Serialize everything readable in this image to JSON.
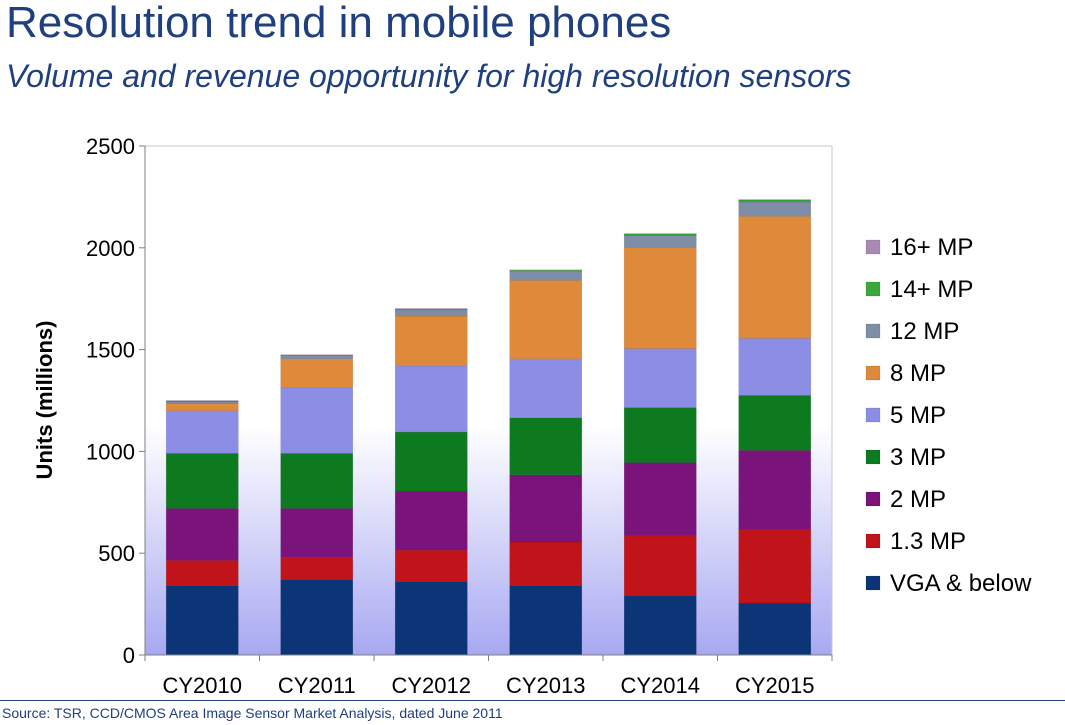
{
  "title": "Resolution trend in mobile phones",
  "subtitle": "Volume and revenue opportunity for high resolution sensors",
  "source": "Source: TSR, CCD/CMOS Area Image Sensor Market Analysis, dated June 2011",
  "colors": {
    "VGA & below": "#0c3577",
    "1.3 MP": "#c0141a",
    "2 MP": "#7a137a",
    "3 MP": "#0d7a20",
    "5 MP": "#8c8ee6",
    "8 MP": "#df8a3a",
    "12 MP": "#7f8ea6",
    "14+ MP": "#3aa83a",
    "16+ MP": "#a98ab4"
  },
  "chart_data": {
    "type": "bar",
    "stacked": true,
    "categories": [
      "CY2010",
      "CY2011",
      "CY2012",
      "CY2013",
      "CY2014",
      "CY2015"
    ],
    "series": [
      {
        "name": "VGA & below",
        "values": [
          340,
          370,
          360,
          340,
          290,
          255
        ]
      },
      {
        "name": "1.3 MP",
        "values": [
          125,
          110,
          155,
          215,
          295,
          360
        ]
      },
      {
        "name": "2 MP",
        "values": [
          255,
          240,
          290,
          330,
          360,
          390
        ]
      },
      {
        "name": "3 MP",
        "values": [
          270,
          270,
          290,
          280,
          270,
          270
        ]
      },
      {
        "name": "5 MP",
        "values": [
          210,
          325,
          325,
          290,
          290,
          280
        ]
      },
      {
        "name": "8 MP",
        "values": [
          35,
          140,
          245,
          385,
          495,
          600
        ]
      },
      {
        "name": "12 MP",
        "values": [
          10,
          15,
          30,
          45,
          60,
          70
        ]
      },
      {
        "name": "14+ MP",
        "values": [
          3,
          3,
          5,
          5,
          8,
          10
        ]
      },
      {
        "name": "16+ MP",
        "values": [
          2,
          2,
          2,
          2,
          2,
          2
        ]
      }
    ],
    "legend_order": [
      "16+ MP",
      "14+ MP",
      "12 MP",
      "8 MP",
      "5 MP",
      "3 MP",
      "2 MP",
      "1.3 MP",
      "VGA & below"
    ],
    "ylabel": "Units (millions)",
    "xlabel": "",
    "ylim": [
      0,
      2500
    ],
    "yticks": [
      0,
      500,
      1000,
      1500,
      2000,
      2500
    ],
    "legend_position": "right",
    "grid": false
  }
}
